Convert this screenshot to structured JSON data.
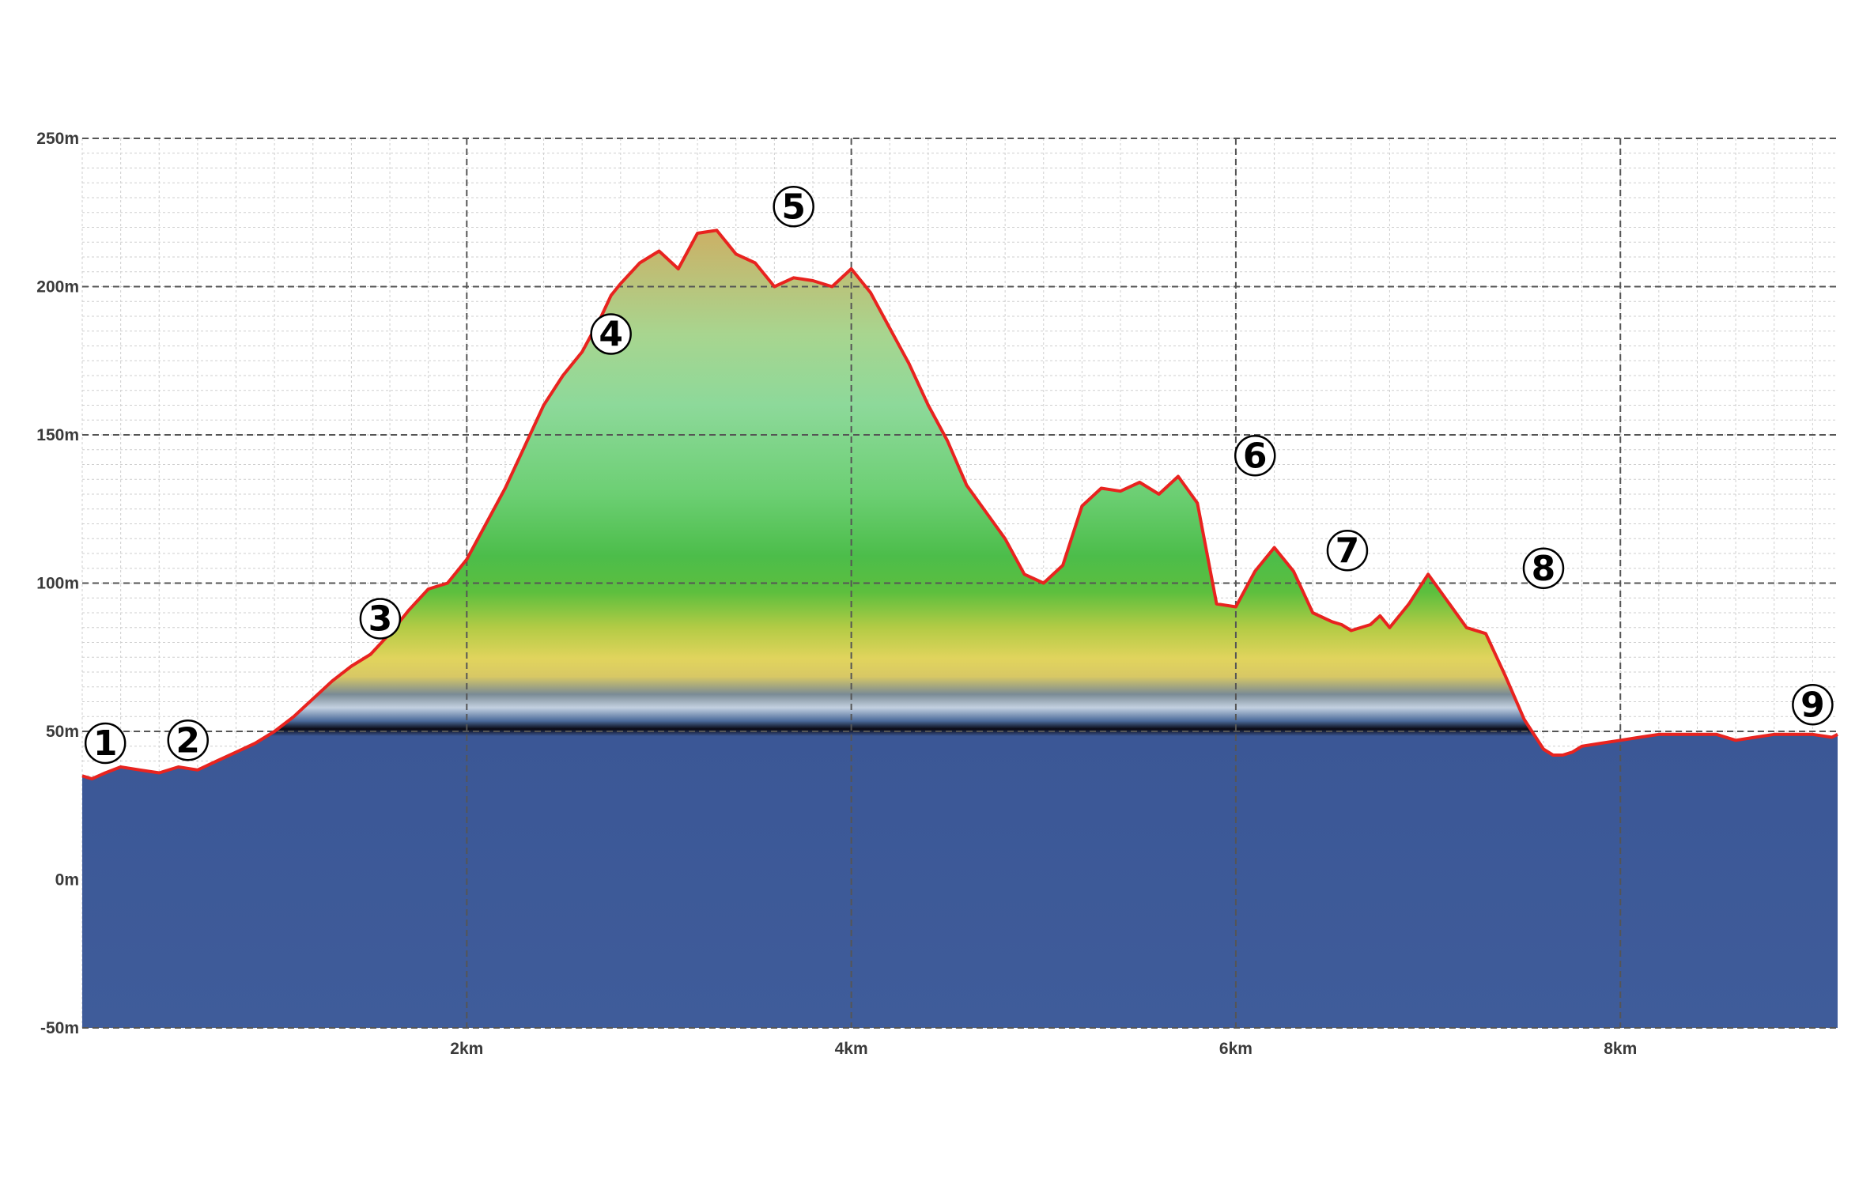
{
  "chart_data": {
    "type": "area",
    "title": "",
    "xlabel": "",
    "ylabel": "",
    "xlim": [
      0,
      9.13
    ],
    "ylim": [
      -50,
      250
    ],
    "x_ticks": [
      {
        "value": 2,
        "label": "2km"
      },
      {
        "value": 4,
        "label": "4km"
      },
      {
        "value": 6,
        "label": "6km"
      },
      {
        "value": 8,
        "label": "8km"
      }
    ],
    "y_ticks": [
      {
        "value": 250,
        "label": "250m"
      },
      {
        "value": 200,
        "label": "200m"
      },
      {
        "value": 150,
        "label": "150m"
      },
      {
        "value": 100,
        "label": "100m"
      },
      {
        "value": 50,
        "label": "50m"
      },
      {
        "value": 0,
        "label": "0m"
      },
      {
        "value": -50,
        "label": "-50m"
      }
    ],
    "grid": true,
    "series": [
      {
        "line_color": "#e8231f",
        "x": [
          0,
          0.05,
          0.12,
          0.2,
          0.3,
          0.4,
          0.5,
          0.6,
          0.7,
          0.8,
          0.9,
          1.0,
          1.1,
          1.2,
          1.3,
          1.4,
          1.5,
          1.6,
          1.7,
          1.8,
          1.9,
          2.0,
          2.1,
          2.2,
          2.3,
          2.4,
          2.5,
          2.6,
          2.7,
          2.75,
          2.8,
          2.9,
          3.0,
          3.1,
          3.2,
          3.3,
          3.4,
          3.5,
          3.6,
          3.7,
          3.8,
          3.9,
          4.0,
          4.1,
          4.2,
          4.3,
          4.4,
          4.5,
          4.6,
          4.7,
          4.8,
          4.9,
          5.0,
          5.1,
          5.2,
          5.3,
          5.4,
          5.5,
          5.6,
          5.7,
          5.8,
          5.9,
          6.0,
          6.1,
          6.2,
          6.3,
          6.4,
          6.5,
          6.55,
          6.6,
          6.7,
          6.75,
          6.8,
          6.9,
          7.0,
          7.1,
          7.2,
          7.3,
          7.4,
          7.5,
          7.6,
          7.65,
          7.7,
          7.75,
          7.8,
          7.9,
          8.0,
          8.1,
          8.2,
          8.3,
          8.4,
          8.5,
          8.6,
          8.7,
          8.8,
          8.9,
          9.0,
          9.1,
          9.13
        ],
        "y": [
          35,
          34,
          36,
          38,
          37,
          36,
          38,
          37,
          40,
          43,
          46,
          50,
          55,
          61,
          67,
          72,
          76,
          83,
          91,
          98,
          100,
          108,
          120,
          132,
          146,
          160,
          170,
          178,
          190,
          197,
          201,
          208,
          212,
          206,
          218,
          219,
          211,
          208,
          200,
          203,
          202,
          200,
          206,
          198,
          186,
          174,
          160,
          148,
          133,
          124,
          115,
          103,
          100,
          106,
          126,
          132,
          131,
          134,
          130,
          136,
          127,
          93,
          92,
          104,
          112,
          104,
          90,
          87,
          86,
          84,
          86,
          89,
          85,
          93,
          103,
          94,
          85,
          83,
          69,
          54,
          44,
          42,
          42,
          43,
          45,
          46,
          47,
          48,
          49,
          49,
          49,
          49,
          47,
          48,
          49,
          49,
          49,
          48,
          49
        ]
      }
    ],
    "markers": [
      {
        "label": "①",
        "x": 0.12,
        "y": 46
      },
      {
        "label": "②",
        "x": 0.55,
        "y": 47
      },
      {
        "label": "③",
        "x": 1.55,
        "y": 88
      },
      {
        "label": "④",
        "x": 2.75,
        "y": 184
      },
      {
        "label": "⑤",
        "x": 3.7,
        "y": 227
      },
      {
        "label": "⑥",
        "x": 6.1,
        "y": 143
      },
      {
        "label": "⑦",
        "x": 6.58,
        "y": 111
      },
      {
        "label": "⑧",
        "x": 7.6,
        "y": 105
      },
      {
        "label": "⑨",
        "x": 9.0,
        "y": 59
      }
    ],
    "colors": {
      "line": "#e8231f",
      "sea": "#3f5c9a",
      "grid_major": "#555555",
      "grid_minor": "#cfcfcf"
    }
  }
}
